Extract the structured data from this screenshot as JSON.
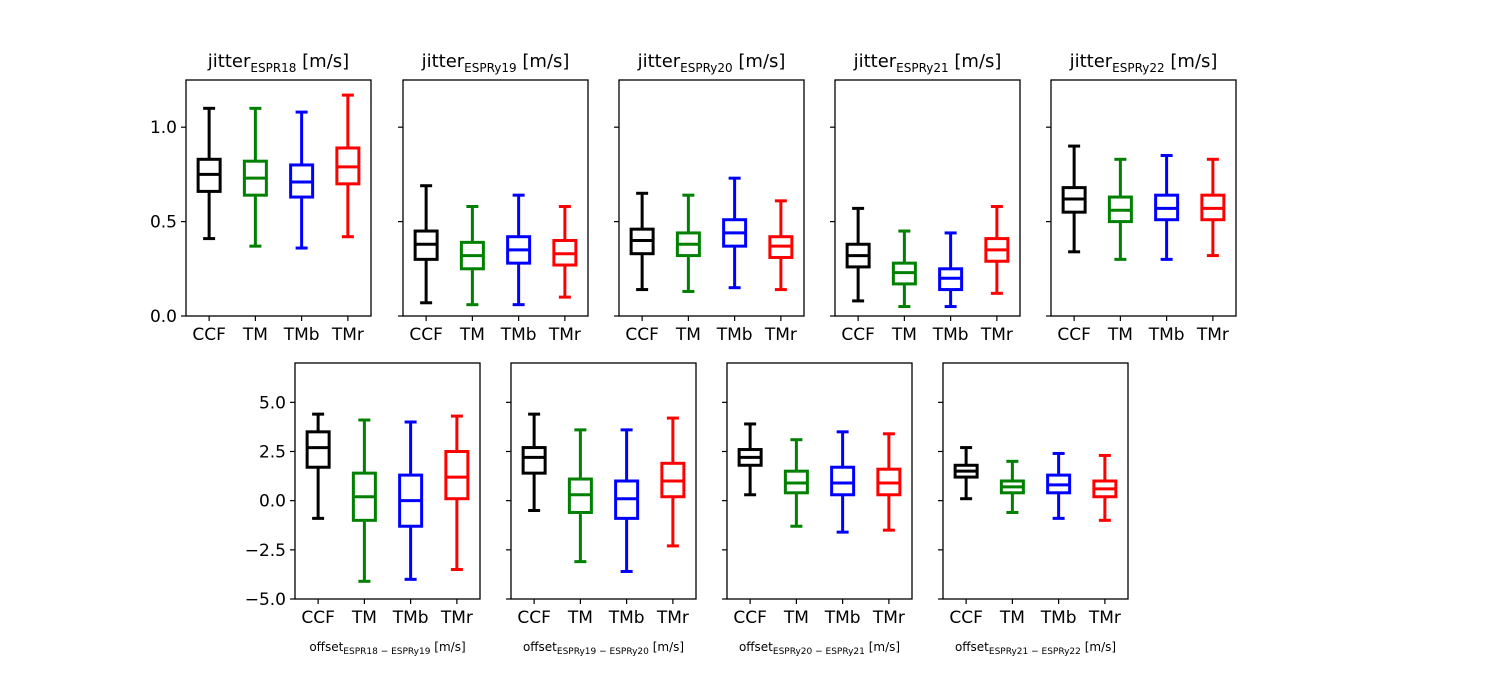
{
  "chart_data": [
    {
      "type": "boxplot",
      "title": "jitter",
      "title_sub": "ESPR18",
      "title_unit": " [m/s]",
      "categories": [
        "CCF",
        "TM",
        "TMb",
        "TMr"
      ],
      "colors": [
        "#000000",
        "#008000",
        "#0000ff",
        "#ff0000"
      ],
      "ylim": [
        0,
        1.25
      ],
      "yticks": [
        0.0,
        0.5,
        1.0
      ],
      "ytick_labels": [
        "0.0",
        "0.5",
        "1.0"
      ],
      "show_yticklabels": true,
      "boxes": [
        {
          "whislo": 0.41,
          "q1": 0.66,
          "med": 0.75,
          "q3": 0.83,
          "whishi": 1.1
        },
        {
          "whislo": 0.37,
          "q1": 0.64,
          "med": 0.73,
          "q3": 0.82,
          "whishi": 1.1
        },
        {
          "whislo": 0.36,
          "q1": 0.63,
          "med": 0.71,
          "q3": 0.8,
          "whishi": 1.08
        },
        {
          "whislo": 0.42,
          "q1": 0.7,
          "med": 0.79,
          "q3": 0.89,
          "whishi": 1.17
        }
      ]
    },
    {
      "type": "boxplot",
      "title": "jitter",
      "title_sub": "ESPRy19",
      "title_unit": " [m/s]",
      "categories": [
        "CCF",
        "TM",
        "TMb",
        "TMr"
      ],
      "colors": [
        "#000000",
        "#008000",
        "#0000ff",
        "#ff0000"
      ],
      "ylim": [
        0,
        1.25
      ],
      "yticks": [
        0.0,
        0.5,
        1.0
      ],
      "ytick_labels": [
        "0.0",
        "0.5",
        "1.0"
      ],
      "show_yticklabels": false,
      "boxes": [
        {
          "whislo": 0.07,
          "q1": 0.3,
          "med": 0.38,
          "q3": 0.45,
          "whishi": 0.69
        },
        {
          "whislo": 0.06,
          "q1": 0.25,
          "med": 0.32,
          "q3": 0.39,
          "whishi": 0.58
        },
        {
          "whislo": 0.06,
          "q1": 0.28,
          "med": 0.35,
          "q3": 0.42,
          "whishi": 0.64
        },
        {
          "whislo": 0.1,
          "q1": 0.27,
          "med": 0.33,
          "q3": 0.4,
          "whishi": 0.58
        }
      ]
    },
    {
      "type": "boxplot",
      "title": "jitter",
      "title_sub": "ESPRy20",
      "title_unit": " [m/s]",
      "categories": [
        "CCF",
        "TM",
        "TMb",
        "TMr"
      ],
      "colors": [
        "#000000",
        "#008000",
        "#0000ff",
        "#ff0000"
      ],
      "ylim": [
        0,
        1.25
      ],
      "yticks": [
        0.0,
        0.5,
        1.0
      ],
      "ytick_labels": [
        "0.0",
        "0.5",
        "1.0"
      ],
      "show_yticklabels": false,
      "boxes": [
        {
          "whislo": 0.14,
          "q1": 0.33,
          "med": 0.4,
          "q3": 0.46,
          "whishi": 0.65
        },
        {
          "whislo": 0.13,
          "q1": 0.32,
          "med": 0.38,
          "q3": 0.44,
          "whishi": 0.64
        },
        {
          "whislo": 0.15,
          "q1": 0.37,
          "med": 0.44,
          "q3": 0.51,
          "whishi": 0.73
        },
        {
          "whislo": 0.14,
          "q1": 0.31,
          "med": 0.37,
          "q3": 0.42,
          "whishi": 0.61
        }
      ]
    },
    {
      "type": "boxplot",
      "title": "jitter",
      "title_sub": "ESPRy21",
      "title_unit": " [m/s]",
      "categories": [
        "CCF",
        "TM",
        "TMb",
        "TMr"
      ],
      "colors": [
        "#000000",
        "#008000",
        "#0000ff",
        "#ff0000"
      ],
      "ylim": [
        0,
        1.25
      ],
      "yticks": [
        0.0,
        0.5,
        1.0
      ],
      "ytick_labels": [
        "0.0",
        "0.5",
        "1.0"
      ],
      "show_yticklabels": false,
      "boxes": [
        {
          "whislo": 0.08,
          "q1": 0.26,
          "med": 0.32,
          "q3": 0.38,
          "whishi": 0.57
        },
        {
          "whislo": 0.05,
          "q1": 0.17,
          "med": 0.23,
          "q3": 0.28,
          "whishi": 0.45
        },
        {
          "whislo": 0.05,
          "q1": 0.14,
          "med": 0.2,
          "q3": 0.25,
          "whishi": 0.44
        },
        {
          "whislo": 0.12,
          "q1": 0.29,
          "med": 0.35,
          "q3": 0.41,
          "whishi": 0.58
        }
      ]
    },
    {
      "type": "boxplot",
      "title": "jitter",
      "title_sub": "ESPRy22",
      "title_unit": " [m/s]",
      "categories": [
        "CCF",
        "TM",
        "TMb",
        "TMr"
      ],
      "colors": [
        "#000000",
        "#008000",
        "#0000ff",
        "#ff0000"
      ],
      "ylim": [
        0,
        1.25
      ],
      "yticks": [
        0.0,
        0.5,
        1.0
      ],
      "ytick_labels": [
        "0.0",
        "0.5",
        "1.0"
      ],
      "show_yticklabels": false,
      "boxes": [
        {
          "whislo": 0.34,
          "q1": 0.55,
          "med": 0.62,
          "q3": 0.68,
          "whishi": 0.9
        },
        {
          "whislo": 0.3,
          "q1": 0.5,
          "med": 0.56,
          "q3": 0.63,
          "whishi": 0.83
        },
        {
          "whislo": 0.3,
          "q1": 0.51,
          "med": 0.57,
          "q3": 0.64,
          "whishi": 0.85
        },
        {
          "whislo": 0.32,
          "q1": 0.51,
          "med": 0.57,
          "q3": 0.64,
          "whishi": 0.83
        }
      ]
    },
    {
      "type": "boxplot",
      "xlabel": "offset",
      "xlabel_sub": "ESPR18 − ESPRy19",
      "xlabel_unit": " [m/s]",
      "categories": [
        "CCF",
        "TM",
        "TMb",
        "TMr"
      ],
      "colors": [
        "#000000",
        "#008000",
        "#0000ff",
        "#ff0000"
      ],
      "ylim": [
        -5.0,
        7.0
      ],
      "yticks": [
        -5.0,
        -2.5,
        0.0,
        2.5,
        5.0
      ],
      "ytick_labels": [
        "−5.0",
        "−2.5",
        "0.0",
        "2.5",
        "5.0"
      ],
      "show_yticklabels": true,
      "boxes": [
        {
          "whislo": -0.9,
          "q1": 1.7,
          "med": 2.7,
          "q3": 3.5,
          "whishi": 4.4
        },
        {
          "whislo": -4.1,
          "q1": -1.0,
          "med": 0.2,
          "q3": 1.4,
          "whishi": 4.1
        },
        {
          "whislo": -4.0,
          "q1": -1.3,
          "med": 0.0,
          "q3": 1.3,
          "whishi": 4.0
        },
        {
          "whislo": -3.5,
          "q1": 0.1,
          "med": 1.2,
          "q3": 2.5,
          "whishi": 4.3
        }
      ]
    },
    {
      "type": "boxplot",
      "xlabel": "offset",
      "xlabel_sub": "ESPRy19 − ESPRy20",
      "xlabel_unit": " [m/s]",
      "categories": [
        "CCF",
        "TM",
        "TMb",
        "TMr"
      ],
      "colors": [
        "#000000",
        "#008000",
        "#0000ff",
        "#ff0000"
      ],
      "ylim": [
        -5.0,
        7.0
      ],
      "yticks": [
        -5.0,
        -2.5,
        0.0,
        2.5,
        5.0
      ],
      "ytick_labels": [
        "−5.0",
        "−2.5",
        "0.0",
        "2.5",
        "5.0"
      ],
      "show_yticklabels": false,
      "boxes": [
        {
          "whislo": -0.5,
          "q1": 1.4,
          "med": 2.2,
          "q3": 2.7,
          "whishi": 4.4
        },
        {
          "whislo": -3.1,
          "q1": -0.6,
          "med": 0.3,
          "q3": 1.1,
          "whishi": 3.6
        },
        {
          "whislo": -3.6,
          "q1": -0.9,
          "med": 0.1,
          "q3": 1.0,
          "whishi": 3.6
        },
        {
          "whislo": -2.3,
          "q1": 0.2,
          "med": 1.0,
          "q3": 1.9,
          "whishi": 4.2
        }
      ]
    },
    {
      "type": "boxplot",
      "xlabel": "offset",
      "xlabel_sub": "ESPRy20 − ESPRy21",
      "xlabel_unit": " [m/s]",
      "categories": [
        "CCF",
        "TM",
        "TMb",
        "TMr"
      ],
      "colors": [
        "#000000",
        "#008000",
        "#0000ff",
        "#ff0000"
      ],
      "ylim": [
        -5.0,
        7.0
      ],
      "yticks": [
        -5.0,
        -2.5,
        0.0,
        2.5,
        5.0
      ],
      "ytick_labels": [
        "−5.0",
        "−2.5",
        "0.0",
        "2.5",
        "5.0"
      ],
      "show_yticklabels": false,
      "boxes": [
        {
          "whislo": 0.3,
          "q1": 1.8,
          "med": 2.2,
          "q3": 2.6,
          "whishi": 3.9
        },
        {
          "whislo": -1.3,
          "q1": 0.4,
          "med": 0.9,
          "q3": 1.5,
          "whishi": 3.1
        },
        {
          "whislo": -1.6,
          "q1": 0.3,
          "med": 0.9,
          "q3": 1.7,
          "whishi": 3.5
        },
        {
          "whislo": -1.5,
          "q1": 0.3,
          "med": 0.9,
          "q3": 1.6,
          "whishi": 3.4
        }
      ]
    },
    {
      "type": "boxplot",
      "xlabel": "offset",
      "xlabel_sub": "ESPRy21 − ESPRy22",
      "xlabel_unit": " [m/s]",
      "categories": [
        "CCF",
        "TM",
        "TMb",
        "TMr"
      ],
      "colors": [
        "#000000",
        "#008000",
        "#0000ff",
        "#ff0000"
      ],
      "ylim": [
        -5.0,
        7.0
      ],
      "yticks": [
        -5.0,
        -2.5,
        0.0,
        2.5,
        5.0
      ],
      "ytick_labels": [
        "−5.0",
        "−2.5",
        "0.0",
        "2.5",
        "5.0"
      ],
      "show_yticklabels": false,
      "boxes": [
        {
          "whislo": 0.1,
          "q1": 1.2,
          "med": 1.5,
          "q3": 1.8,
          "whishi": 2.7
        },
        {
          "whislo": -0.6,
          "q1": 0.4,
          "med": 0.7,
          "q3": 1.0,
          "whishi": 2.0
        },
        {
          "whislo": -0.9,
          "q1": 0.4,
          "med": 0.8,
          "q3": 1.3,
          "whishi": 2.4
        },
        {
          "whislo": -1.0,
          "q1": 0.2,
          "med": 0.6,
          "q3": 1.0,
          "whishi": 2.3
        }
      ]
    }
  ]
}
